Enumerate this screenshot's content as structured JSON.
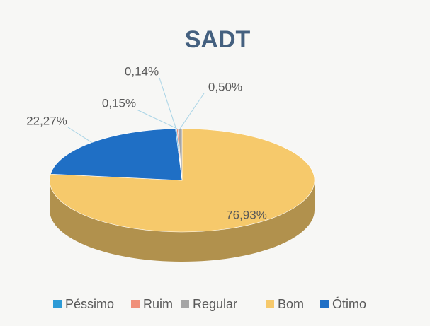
{
  "chart_data": {
    "type": "pie3d",
    "title": "SADT",
    "categories": [
      "Péssimo",
      "Ruim",
      "Regular",
      "Bom",
      "Ótimo"
    ],
    "values": [
      0.14,
      0.15,
      0.5,
      76.93,
      22.27
    ],
    "value_labels": [
      "0,14%",
      "0,15%",
      "0,50%",
      "76,93%",
      "22,27%"
    ],
    "colors": [
      "#2e9bd6",
      "#f0907a",
      "#a5a5a5",
      "#f6c96b",
      "#1f6fc5"
    ],
    "legend": "bottom"
  }
}
